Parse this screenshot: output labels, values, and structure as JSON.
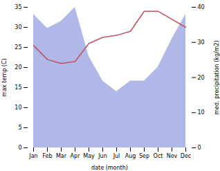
{
  "chart_data": {
    "type": "line",
    "categories": [
      "Jan",
      "Feb",
      "Mar",
      "Apr",
      "May",
      "Jun",
      "Jul",
      "Aug",
      "Sep",
      "Oct",
      "Nov",
      "Dec"
    ],
    "xlabel": "date (month)",
    "ylabel": "max temp (C)",
    "y2label": "med. precipitation (kg/m2)",
    "ylim": [
      0,
      35
    ],
    "yticks": [
      0,
      5,
      10,
      15,
      20,
      25,
      30,
      35
    ],
    "y2lim": [
      0,
      40
    ],
    "y2ticks": [
      0,
      10,
      20,
      30,
      40
    ],
    "series": [
      {
        "type": "area",
        "axis": "y2",
        "color": "#b0b8e8",
        "values": [
          38,
          34,
          36,
          40,
          26,
          19,
          16,
          19,
          19,
          23,
          31,
          38
        ]
      },
      {
        "type": "line",
        "color": "#c05060",
        "values": [
          25.5,
          22,
          21,
          21.5,
          26,
          27.5,
          28,
          29,
          34,
          34,
          32,
          30
        ]
      }
    ]
  }
}
